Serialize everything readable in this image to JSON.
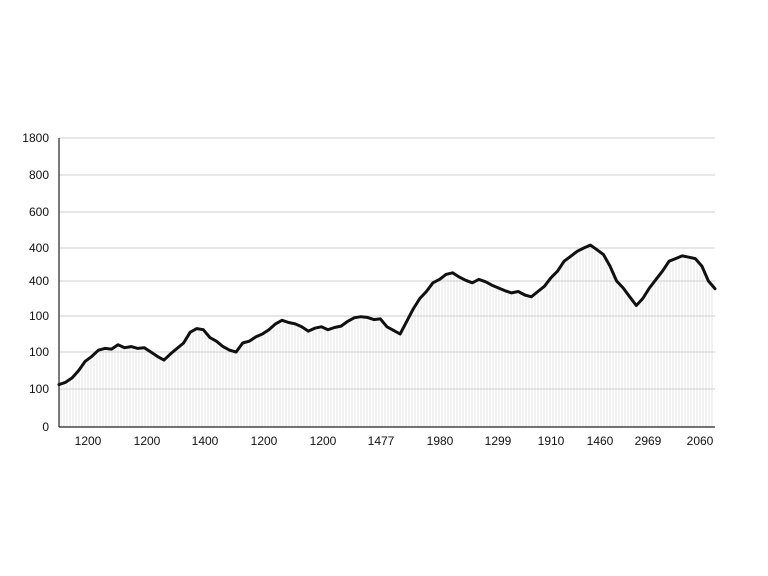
{
  "chart_data": {
    "type": "line",
    "title": "",
    "xlabel": "",
    "ylabel": "",
    "grid": true,
    "y_tick_labels": [
      "0",
      "100",
      "100",
      "100",
      "400",
      "400",
      "600",
      "800",
      "1800"
    ],
    "x_tick_labels": [
      "1200",
      "1200",
      "1400",
      "1200",
      "1200",
      "1477",
      "1980",
      "1299",
      "1910",
      "1460",
      "2969",
      "2060"
    ],
    "y_steps": [
      0,
      1,
      2,
      3,
      4,
      5,
      6,
      7,
      8
    ],
    "ylim": [
      0,
      8
    ],
    "xlim": [
      0,
      100
    ],
    "series": [
      {
        "values": [
          [
            0,
            1.12
          ],
          [
            1,
            1.18
          ],
          [
            2,
            1.3
          ],
          [
            3,
            1.5
          ],
          [
            4,
            1.75
          ],
          [
            5,
            1.88
          ],
          [
            6,
            2.05
          ],
          [
            7,
            2.1
          ],
          [
            8,
            2.08
          ],
          [
            9,
            2.2
          ],
          [
            10,
            2.12
          ],
          [
            11,
            2.15
          ],
          [
            12,
            2.1
          ],
          [
            13,
            2.12
          ],
          [
            14,
            2.0
          ],
          [
            15,
            1.88
          ],
          [
            16,
            1.78
          ],
          [
            17,
            1.95
          ],
          [
            18,
            2.1
          ],
          [
            19,
            2.25
          ],
          [
            20,
            2.55
          ],
          [
            21,
            2.65
          ],
          [
            22,
            2.62
          ],
          [
            23,
            2.4
          ],
          [
            24,
            2.3
          ],
          [
            25,
            2.15
          ],
          [
            26,
            2.05
          ],
          [
            27,
            2.0
          ],
          [
            28,
            2.25
          ],
          [
            29,
            2.3
          ],
          [
            30,
            2.42
          ],
          [
            31,
            2.5
          ],
          [
            32,
            2.62
          ],
          [
            33,
            2.78
          ],
          [
            34,
            2.88
          ],
          [
            35,
            2.82
          ],
          [
            36,
            2.78
          ],
          [
            37,
            2.7
          ],
          [
            38,
            2.58
          ],
          [
            39,
            2.66
          ],
          [
            40,
            2.7
          ],
          [
            41,
            2.62
          ],
          [
            42,
            2.68
          ],
          [
            43,
            2.72
          ],
          [
            44,
            2.85
          ],
          [
            45,
            2.95
          ],
          [
            46,
            2.98
          ],
          [
            47,
            2.96
          ],
          [
            48,
            2.9
          ],
          [
            49,
            2.92
          ],
          [
            50,
            2.7
          ],
          [
            51,
            2.6
          ],
          [
            52,
            2.5
          ],
          [
            53,
            2.85
          ],
          [
            54,
            3.2
          ],
          [
            55,
            3.5
          ],
          [
            56,
            3.7
          ],
          [
            57,
            3.95
          ],
          [
            58,
            4.05
          ],
          [
            59,
            4.2
          ],
          [
            60,
            4.25
          ],
          [
            61,
            4.12
          ],
          [
            62,
            4.02
          ],
          [
            63,
            3.95
          ],
          [
            64,
            4.05
          ],
          [
            65,
            3.98
          ],
          [
            66,
            3.88
          ],
          [
            67,
            3.8
          ],
          [
            68,
            3.72
          ],
          [
            69,
            3.66
          ],
          [
            70,
            3.7
          ],
          [
            71,
            3.6
          ],
          [
            72,
            3.55
          ],
          [
            73,
            3.7
          ],
          [
            74,
            3.85
          ],
          [
            75,
            4.1
          ],
          [
            76,
            4.3
          ],
          [
            77,
            4.6
          ],
          [
            78,
            4.75
          ],
          [
            79,
            4.9
          ],
          [
            80,
            5.0
          ],
          [
            81,
            5.08
          ],
          [
            82,
            4.95
          ],
          [
            83,
            4.8
          ],
          [
            84,
            4.45
          ],
          [
            85,
            4.0
          ],
          [
            86,
            3.8
          ],
          [
            87,
            3.55
          ],
          [
            88,
            3.3
          ],
          [
            89,
            3.5
          ],
          [
            90,
            3.8
          ],
          [
            91,
            4.05
          ],
          [
            92,
            4.3
          ],
          [
            93,
            4.6
          ],
          [
            94,
            4.68
          ],
          [
            95,
            4.76
          ],
          [
            96,
            4.72
          ],
          [
            97,
            4.68
          ],
          [
            98,
            4.45
          ],
          [
            99,
            4.0
          ],
          [
            100,
            3.78
          ]
        ]
      }
    ]
  }
}
